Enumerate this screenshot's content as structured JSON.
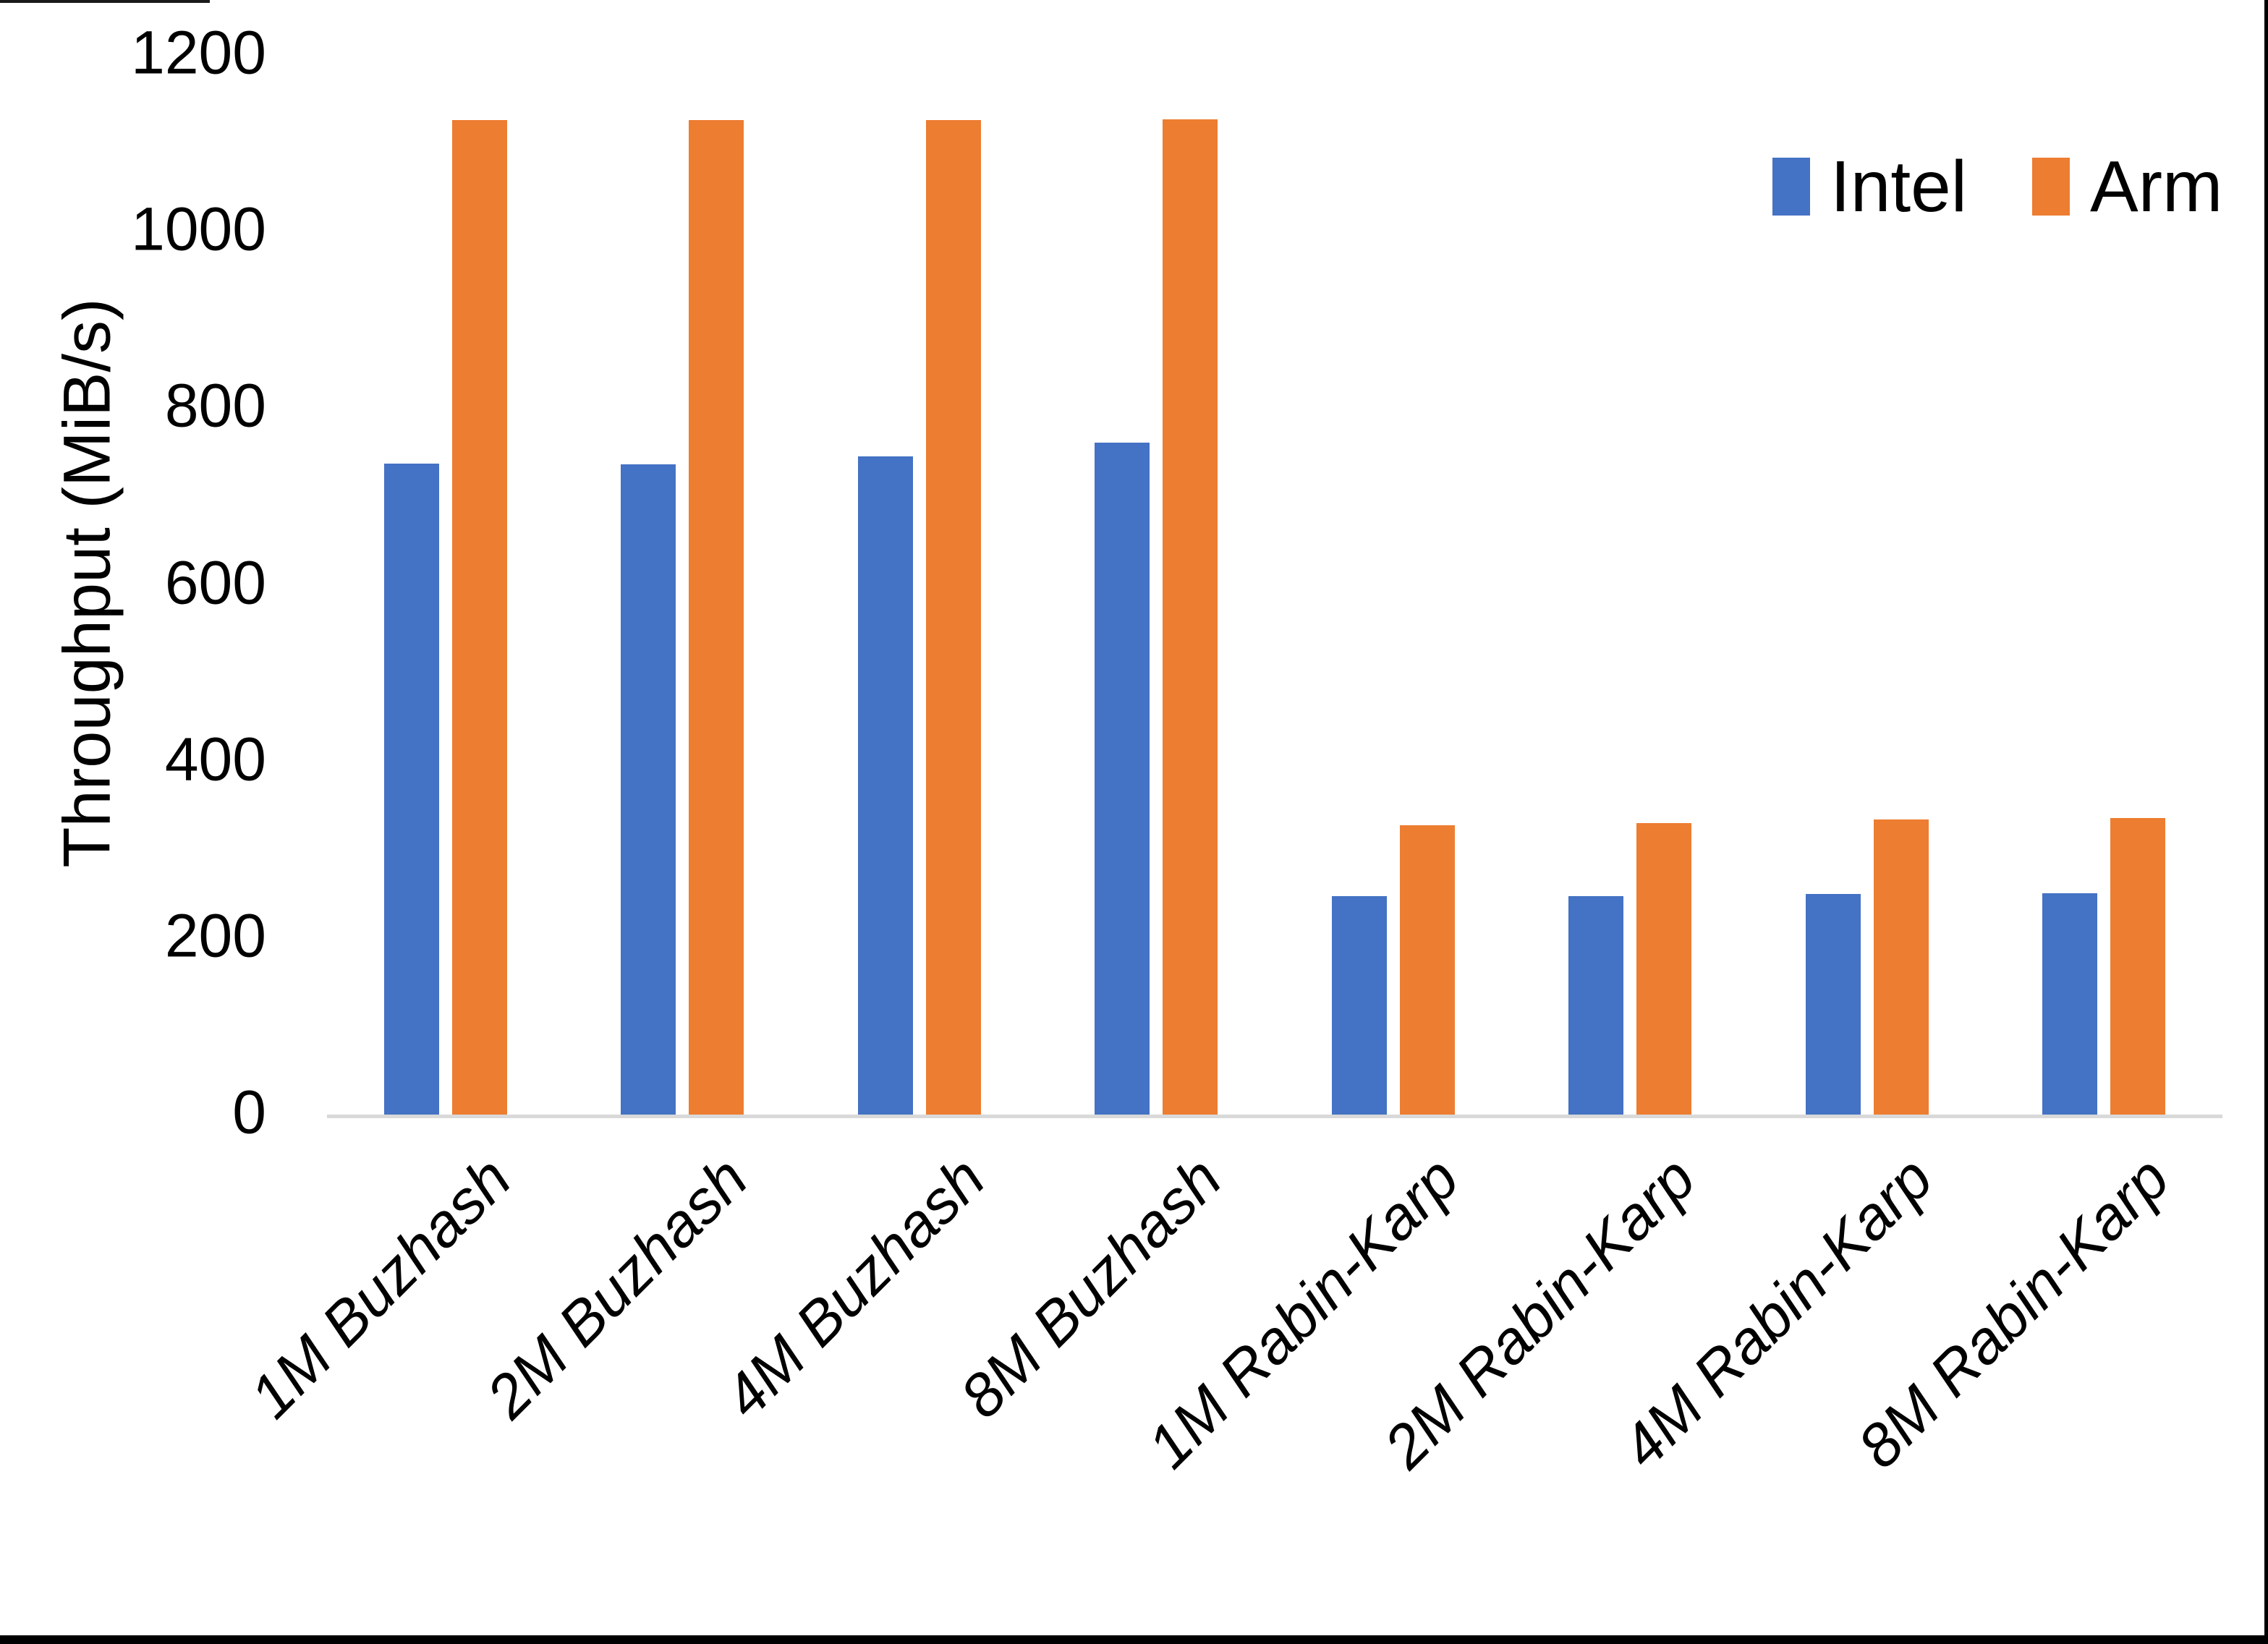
{
  "chart_data": {
    "type": "bar",
    "title": "",
    "xlabel": "",
    "ylabel": "Throughput (MiB/s)",
    "ylim": [
      0,
      1200
    ],
    "yticks": [
      0,
      200,
      400,
      600,
      800,
      1000,
      1200
    ],
    "grid": false,
    "legend_position": "top-right",
    "axis_line_color": "#D9D9D9",
    "text_color": "#000000",
    "categories": [
      "1M Buzhash",
      "2M Buzhash",
      "4M Buzhash",
      "8M Buzhash",
      "1M Rabin-Karp",
      "2M Rabin-Karp",
      "4M Rabin-Karp",
      "8M Rabin-Karp"
    ],
    "series": [
      {
        "name": "Intel",
        "color": "#4472C4",
        "values": [
          737,
          736,
          745,
          761,
          247,
          247,
          250,
          251
        ]
      },
      {
        "name": "Arm",
        "color": "#ED7D31",
        "values": [
          1126,
          1126,
          1126,
          1127,
          328,
          330,
          334,
          336
        ]
      }
    ]
  }
}
